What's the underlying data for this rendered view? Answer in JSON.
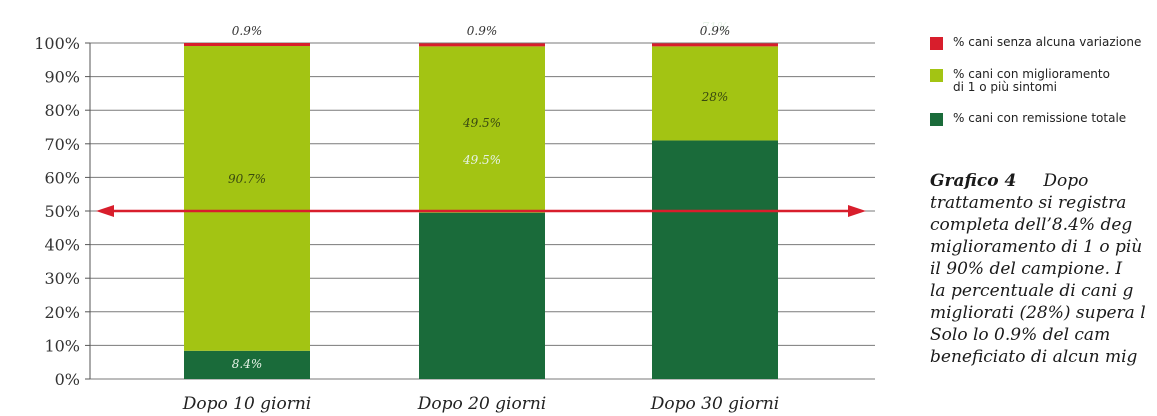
{
  "chart_data": {
    "type": "bar",
    "stacked": true,
    "categories": [
      "Dopo 10 giorni",
      "Dopo 20 giorni",
      "Dopo 30 giorni"
    ],
    "series": [
      {
        "name": "% cani con remissione totale",
        "values": [
          8.4,
          49.5,
          71
        ],
        "labels": [
          "8.4%",
          "49.5%",
          "71%"
        ],
        "color": "#1a6b3a"
      },
      {
        "name": "% cani con miglioramento di 1 o più sintomi",
        "values": [
          90.7,
          49.5,
          28
        ],
        "labels": [
          "90.7%",
          "49.5%",
          "28%"
        ],
        "color": "#a3c413"
      },
      {
        "name": "% cani senza alcuna variazione",
        "values": [
          0.9,
          0.9,
          0.9
        ],
        "labels": [
          "0.9%",
          "0.9%",
          "0.9%"
        ],
        "color": "#d81e2c"
      }
    ],
    "y_ticks": [
      "0%",
      "10%",
      "20%",
      "30%",
      "40%",
      "50%",
      "60%",
      "70%",
      "80%",
      "90%",
      "100%"
    ],
    "ylim": [
      0,
      100
    ],
    "reference_line": {
      "y": 50,
      "color": "#d81e2c",
      "arrows": "both"
    },
    "grid": true,
    "legend_position": "right"
  },
  "legend": {
    "items": [
      {
        "label": "% cani senza alcuna variazione",
        "color": "#d81e2c"
      },
      {
        "label": "% cani con miglioramento\ndi 1 o più sintomi",
        "color": "#a3c413"
      },
      {
        "label": "% cani con remissione totale",
        "color": "#1a6b3a"
      }
    ]
  },
  "caption": {
    "title": "Grafico 4",
    "first_line_rest": "Dopo",
    "lines": [
      "trattamento si registra",
      "completa dell’8.4% deg",
      "miglioramento di 1 o più",
      "il 90% del campione. I",
      "la percentuale di cani g",
      "migliorati (28%) supera l",
      "Solo lo 0.9% del cam",
      "beneficiato di alcun mig"
    ]
  }
}
